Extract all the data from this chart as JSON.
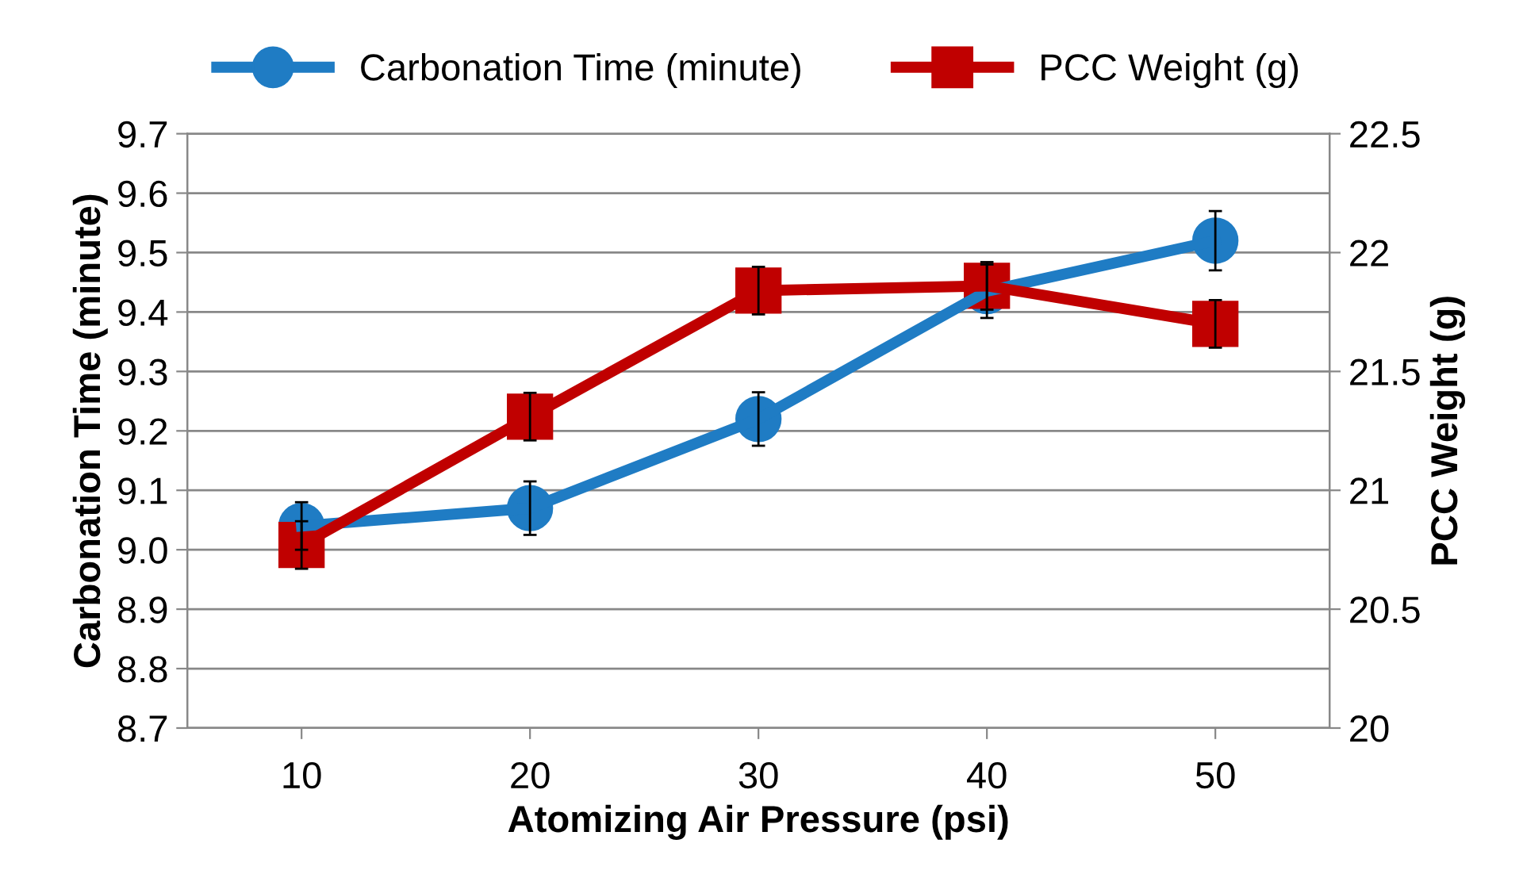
{
  "chart_data": {
    "type": "line",
    "xlabel": "Atomizing Air Pressure (psi)",
    "ylabel": "Carbonation Time (minute)",
    "y2label": "PCC Weight (g)",
    "categories": [
      "10",
      "20",
      "30",
      "40",
      "50"
    ],
    "series": [
      {
        "name": "Carbonation Time (minute)",
        "color": "#1f7cc4",
        "marker": "circle",
        "values": [
          9.04,
          9.07,
          9.22,
          9.435,
          9.52
        ],
        "errors": [
          0.04,
          0.045,
          0.045,
          0.045,
          0.05
        ]
      },
      {
        "name": "PCC Weight (g)",
        "color": "#c00000",
        "marker": "square",
        "axis": "y2",
        "values": [
          20.77,
          21.31,
          21.84,
          21.86,
          21.7
        ],
        "errors": [
          0.1,
          0.1,
          0.1,
          0.1,
          0.1
        ]
      }
    ],
    "ylim": [
      8.7,
      9.7
    ],
    "yticks": [
      {
        "value": 8.7,
        "label": "8.7"
      },
      {
        "value": 8.8,
        "label": "8.8"
      },
      {
        "value": 8.9,
        "label": "8.9"
      },
      {
        "value": 9.0,
        "label": "9.0"
      },
      {
        "value": 9.1,
        "label": "9.1"
      },
      {
        "value": 9.2,
        "label": "9.2"
      },
      {
        "value": 9.3,
        "label": "9.3"
      },
      {
        "value": 9.4,
        "label": "9.4"
      },
      {
        "value": 9.5,
        "label": "9.5"
      },
      {
        "value": 9.6,
        "label": "9.6"
      },
      {
        "value": 9.7,
        "label": "9.7"
      }
    ],
    "y2lim": [
      20,
      22.5
    ],
    "y2ticks": [
      20,
      20.5,
      21,
      21.5,
      22,
      22.5
    ],
    "grid": "y",
    "legend": "top",
    "line_style": "solid"
  }
}
